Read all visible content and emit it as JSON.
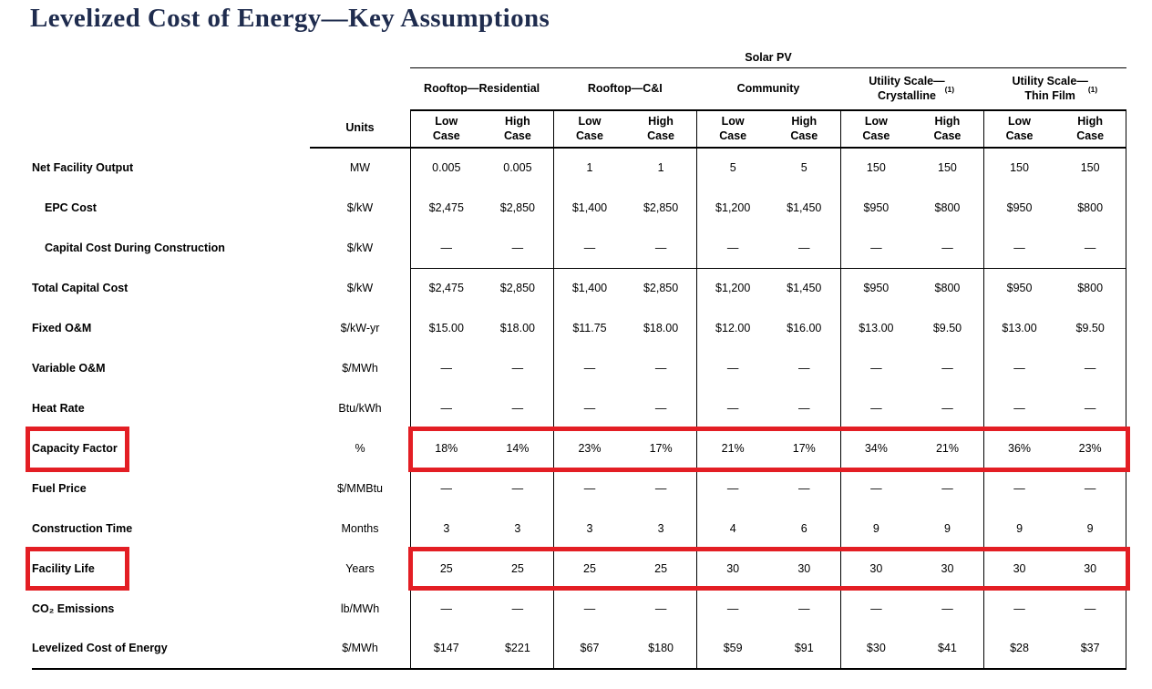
{
  "title": "Levelized Cost of Energy—Key Assumptions",
  "colors": {
    "highlight_red": "#e31e24",
    "title_navy": "#1f2c4e"
  },
  "table": {
    "super_header": "Solar PV",
    "units_header": "Units",
    "sub_headers": {
      "low": "Low\nCase",
      "high": "High\nCase"
    },
    "groups": [
      {
        "line1": "Rooftop—Residential",
        "line2": "",
        "sup": ""
      },
      {
        "line1": "Rooftop—C&I",
        "line2": "",
        "sup": ""
      },
      {
        "line1": "Community",
        "line2": "",
        "sup": ""
      },
      {
        "line1": "Utility Scale—",
        "line2": "Crystalline",
        "sup": "(1)"
      },
      {
        "line1": "Utility Scale—",
        "line2": "Thin Film",
        "sup": "(1)"
      }
    ],
    "rows": [
      {
        "label": "Net Facility Output",
        "indent": false,
        "units": "MW",
        "values": [
          "0.005",
          "0.005",
          "1",
          "1",
          "5",
          "5",
          "150",
          "150",
          "150",
          "150"
        ],
        "divider_below": false,
        "highlight": false
      },
      {
        "label": "EPC Cost",
        "indent": true,
        "units": "$/kW",
        "values": [
          "$2,475",
          "$2,850",
          "$1,400",
          "$2,850",
          "$1,200",
          "$1,450",
          "$950",
          "$800",
          "$950",
          "$800"
        ],
        "divider_below": false,
        "highlight": false
      },
      {
        "label": "Capital Cost During Construction",
        "indent": true,
        "units": "$/kW",
        "values": [
          "—",
          "—",
          "—",
          "—",
          "—",
          "—",
          "—",
          "—",
          "—",
          "—"
        ],
        "divider_below": true,
        "highlight": false
      },
      {
        "label": "Total Capital Cost",
        "indent": false,
        "units": "$/kW",
        "values": [
          "$2,475",
          "$2,850",
          "$1,400",
          "$2,850",
          "$1,200",
          "$1,450",
          "$950",
          "$800",
          "$950",
          "$800"
        ],
        "divider_below": false,
        "highlight": false
      },
      {
        "label": "Fixed O&M",
        "indent": false,
        "units": "$/kW-yr",
        "values": [
          "$15.00",
          "$18.00",
          "$11.75",
          "$18.00",
          "$12.00",
          "$16.00",
          "$13.00",
          "$9.50",
          "$13.00",
          "$9.50"
        ],
        "divider_below": false,
        "highlight": false
      },
      {
        "label": "Variable O&M",
        "indent": false,
        "units": "$/MWh",
        "values": [
          "—",
          "—",
          "—",
          "—",
          "—",
          "—",
          "—",
          "—",
          "—",
          "—"
        ],
        "divider_below": false,
        "highlight": false
      },
      {
        "label": "Heat Rate",
        "indent": false,
        "units": "Btu/kWh",
        "values": [
          "—",
          "—",
          "—",
          "—",
          "—",
          "—",
          "—",
          "—",
          "—",
          "—"
        ],
        "divider_below": false,
        "highlight": false
      },
      {
        "label": "Capacity Factor",
        "indent": false,
        "units": "%",
        "values": [
          "18%",
          "14%",
          "23%",
          "17%",
          "21%",
          "17%",
          "34%",
          "21%",
          "36%",
          "23%"
        ],
        "divider_below": false,
        "highlight": true
      },
      {
        "label": "Fuel Price",
        "indent": false,
        "units": "$/MMBtu",
        "values": [
          "—",
          "—",
          "—",
          "—",
          "—",
          "—",
          "—",
          "—",
          "—",
          "—"
        ],
        "divider_below": false,
        "highlight": false
      },
      {
        "label": "Construction Time",
        "indent": false,
        "units": "Months",
        "values": [
          "3",
          "3",
          "3",
          "3",
          "4",
          "6",
          "9",
          "9",
          "9",
          "9"
        ],
        "divider_below": false,
        "highlight": false
      },
      {
        "label": "Facility Life",
        "indent": false,
        "units": "Years",
        "values": [
          "25",
          "25",
          "25",
          "25",
          "30",
          "30",
          "30",
          "30",
          "30",
          "30"
        ],
        "divider_below": false,
        "highlight": true
      },
      {
        "label": "CO₂ Emissions",
        "indent": false,
        "units": "lb/MWh",
        "values": [
          "—",
          "—",
          "—",
          "—",
          "—",
          "—",
          "—",
          "—",
          "—",
          "—"
        ],
        "divider_below": false,
        "highlight": false
      },
      {
        "label": "Levelized Cost of Energy",
        "indent": false,
        "units": "$/MWh",
        "values": [
          "$147",
          "$221",
          "$67",
          "$180",
          "$59",
          "$91",
          "$30",
          "$41",
          "$28",
          "$37"
        ],
        "divider_below": false,
        "highlight": false
      }
    ]
  }
}
